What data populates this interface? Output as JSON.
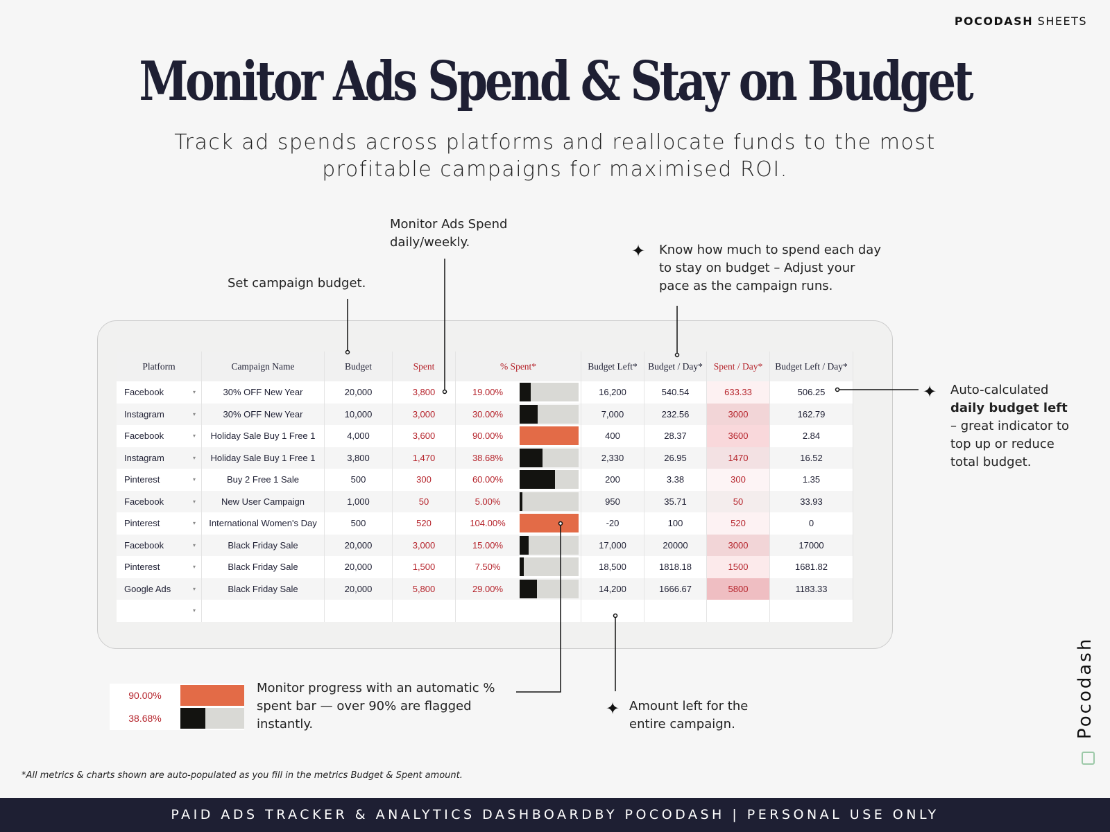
{
  "brand": {
    "bold": "POCODASH",
    "rest": " SHEETS"
  },
  "title": "Monitor Ads Spend & Stay on Budget",
  "subtitle": "Track ad spends across platforms and reallocate funds to the most profitable campaigns for maximised ROI.",
  "annotations": {
    "budget": "Set campaign budget.",
    "spend": "Monitor Ads Spend daily/weekly.",
    "per_day": "Know how much to spend each day to stay on budget –  Adjust your pace as the campaign runs.",
    "auto_pre": "Auto-calculated",
    "auto_bold": "daily budget left",
    "auto_post": "– great indicator to top up or reduce total budget.",
    "bar": "Monitor progress with an automatic % spent bar — over 90% are flagged instantly.",
    "left": "Amount left for the entire campaign."
  },
  "table": {
    "headers": [
      "Platform",
      "Campaign Name",
      "Budget",
      "Spent",
      "% Spent*",
      "Budget Left*",
      "Budget / Day*",
      "Spent / Day*",
      "Budget Left / Day*"
    ],
    "rows": [
      [
        "Facebook",
        "30% OFF New Year",
        "20,000",
        "3,800",
        "19.00%",
        "16,200",
        "540.54",
        "633.33",
        "506.25"
      ],
      [
        "Instagram",
        "30% OFF New Year",
        "10,000",
        "3,000",
        "30.00%",
        "7,000",
        "232.56",
        "3000",
        "162.79"
      ],
      [
        "Facebook",
        "Holiday Sale Buy 1 Free 1",
        "4,000",
        "3,600",
        "90.00%",
        "400",
        "28.37",
        "3600",
        "2.84"
      ],
      [
        "Instagram",
        "Holiday Sale Buy 1 Free 1",
        "3,800",
        "1,470",
        "38.68%",
        "2,330",
        "26.95",
        "1470",
        "16.52"
      ],
      [
        "Pinterest",
        "Buy 2 Free 1 Sale",
        "500",
        "300",
        "60.00%",
        "200",
        "3.38",
        "300",
        "1.35"
      ],
      [
        "Facebook",
        "New User Campaign",
        "1,000",
        "50",
        "5.00%",
        "950",
        "35.71",
        "50",
        "33.93"
      ],
      [
        "Pinterest",
        "International Women's Day",
        "500",
        "520",
        "104.00%",
        "-20",
        "100",
        "520",
        "0"
      ],
      [
        "Facebook",
        "Black Friday Sale",
        "20,000",
        "3,000",
        "15.00%",
        "17,000",
        "20000",
        "3000",
        "17000"
      ],
      [
        "Pinterest",
        "Black Friday Sale",
        "20,000",
        "1,500",
        "7.50%",
        "18,500",
        "1818.18",
        "1500",
        "1681.82"
      ],
      [
        "Google Ads",
        "Black Friday Sale",
        "20,000",
        "5,800",
        "29.00%",
        "14,200",
        "1666.67",
        "5800",
        "1183.33"
      ]
    ],
    "spent_pct": [
      19,
      30,
      90,
      38.68,
      60,
      5,
      104,
      15,
      7.5,
      29
    ],
    "flag_threshold": 90
  },
  "legend": {
    "rows": [
      {
        "label": "90.00%",
        "pct": 90
      },
      {
        "label": "38.68%",
        "pct": 38.68
      }
    ]
  },
  "colors": {
    "flag": "#e36b47",
    "fill": "#131310",
    "track": "#d9d9d5",
    "red_text": "#b5232b",
    "footer": "#1e1f33"
  },
  "footnote": "*All metrics & charts shown are auto-populated as you fill in the metrics Budget & Spent amount.",
  "vertical_logo": "Pocodash",
  "footer": "PAID ADS TRACKER & ANALYTICS DASHBOARDBY POCODASH | PERSONAL USE ONLY"
}
